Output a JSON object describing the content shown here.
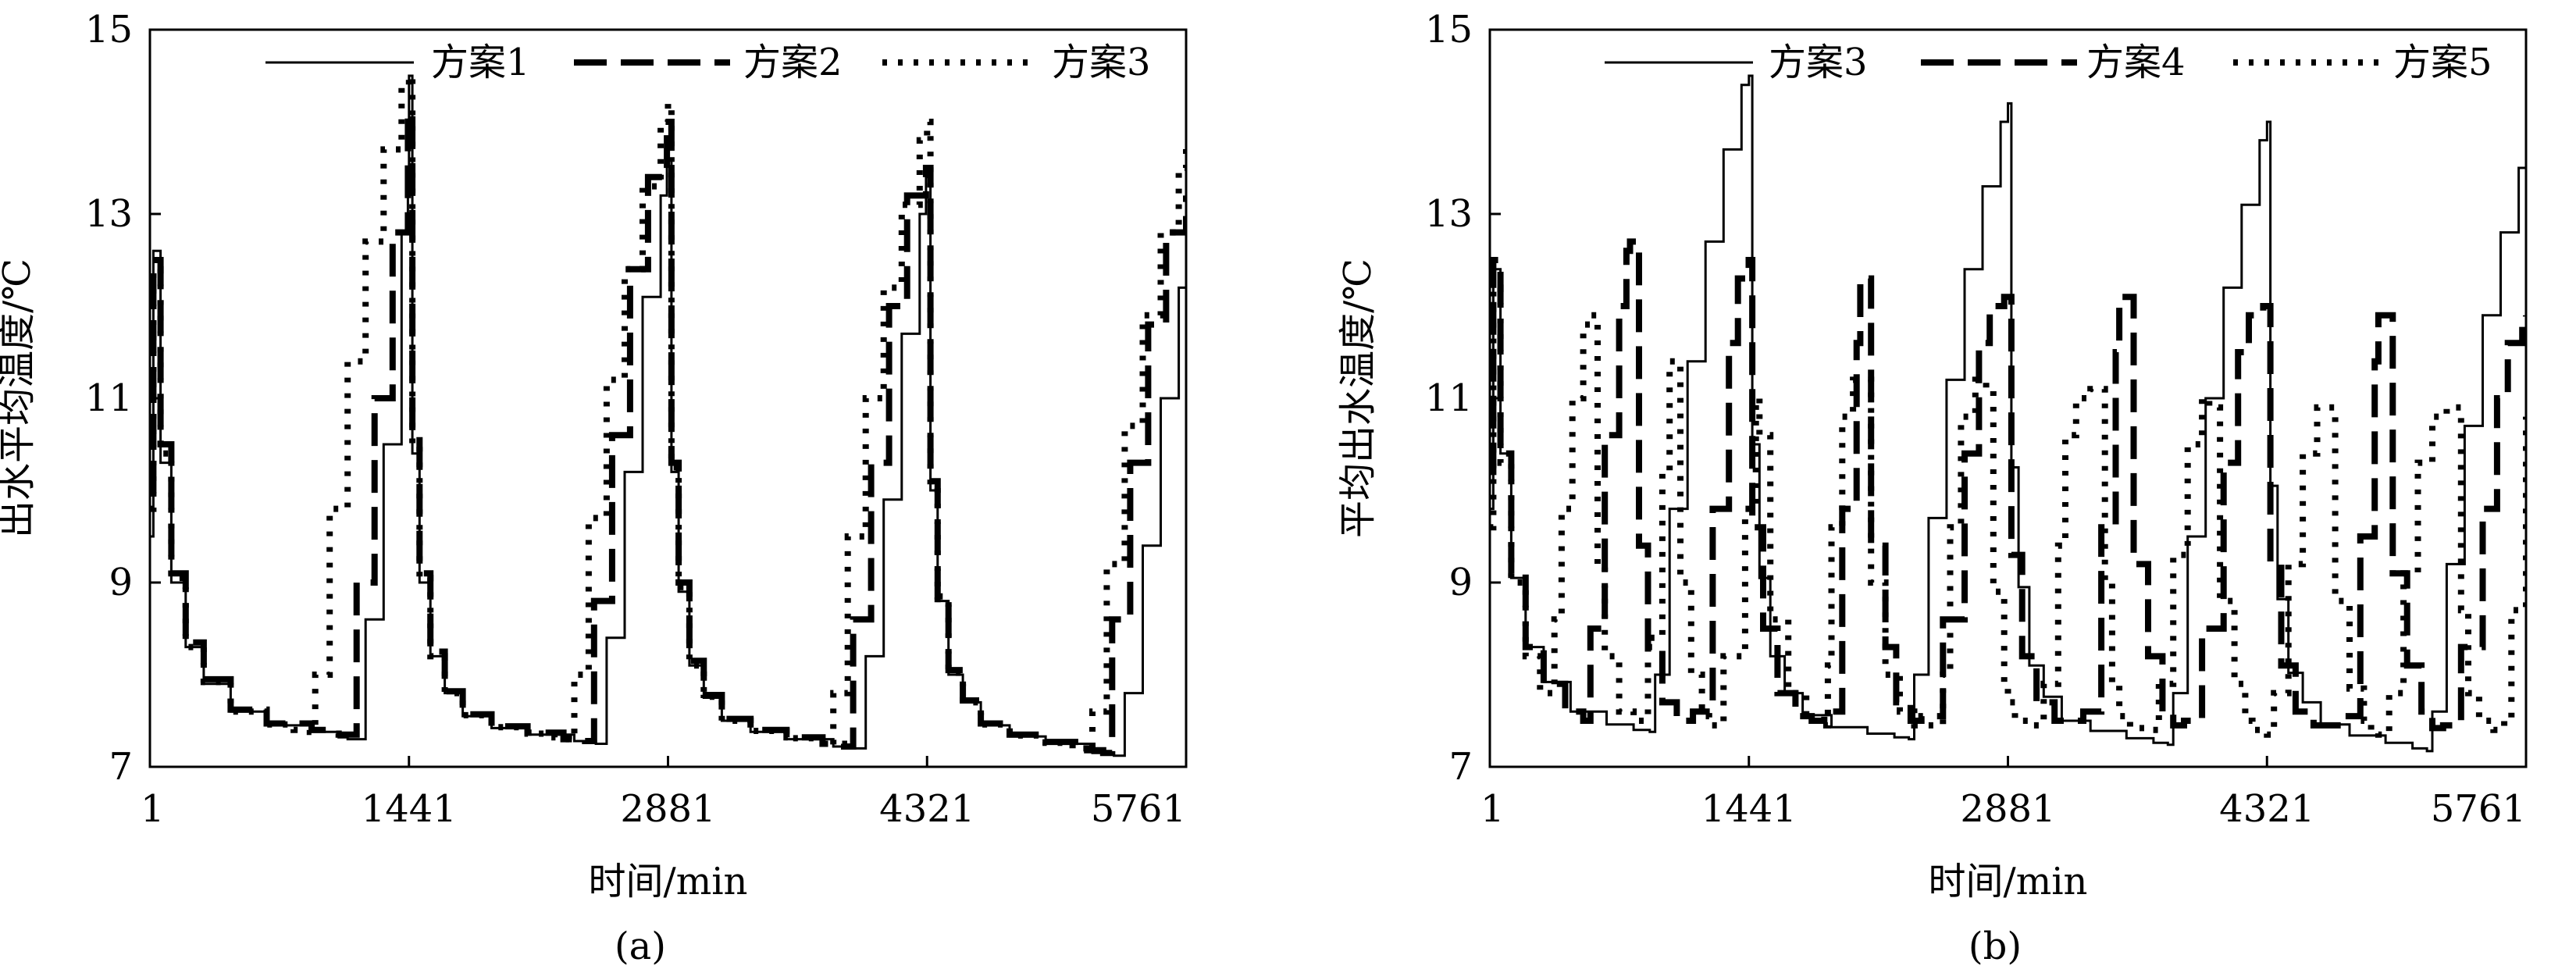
{
  "figure": {
    "panels": [
      {
        "caption": "(a)",
        "xlabel": "时间/min",
        "ylabel": "出水平均温度/℃",
        "legend_position": "top"
      },
      {
        "caption": "(b)",
        "xlabel": "时间/min",
        "ylabel": "平均出水温度/℃",
        "legend_position": "top"
      }
    ]
  },
  "chart_data": [
    {
      "type": "line",
      "title": "",
      "xlabel": "时间/min",
      "ylabel": "出水平均温度/℃",
      "xlim": [
        1,
        5761
      ],
      "ylim": [
        7,
        15
      ],
      "xticks": [
        1,
        1441,
        2881,
        4321,
        5761
      ],
      "yticks": [
        7,
        9,
        11,
        13,
        15
      ],
      "grid": false,
      "legend_position": "top",
      "series": [
        {
          "name": "方案1",
          "style": "solid",
          "x": [
            1,
            20,
            60,
            120,
            200,
            300,
            450,
            650,
            900,
            1050,
            1100,
            1200,
            1300,
            1400,
            1435,
            1441,
            1460,
            1500,
            1560,
            1640,
            1740,
            1900,
            2100,
            2360,
            2480,
            2540,
            2640,
            2740,
            2840,
            2875,
            2881,
            2900,
            2940,
            3000,
            3080,
            3180,
            3340,
            3540,
            3800,
            3920,
            3980,
            4080,
            4180,
            4280,
            4315,
            4321,
            4340,
            4380,
            4440,
            4520,
            4620,
            4780,
            4980,
            5240,
            5360,
            5420,
            5520,
            5620,
            5720,
            5761
          ],
          "values": [
            9.5,
            12.6,
            10.3,
            9.0,
            8.3,
            7.9,
            7.6,
            7.45,
            7.38,
            7.32,
            7.3,
            8.6,
            10.5,
            12.8,
            13.5,
            14.5,
            10.4,
            9.0,
            8.2,
            7.8,
            7.55,
            7.42,
            7.35,
            7.28,
            7.25,
            8.4,
            10.2,
            12.1,
            13.2,
            13.6,
            13.6,
            10.2,
            8.9,
            8.1,
            7.75,
            7.5,
            7.38,
            7.3,
            7.22,
            7.2,
            8.2,
            9.9,
            11.7,
            13.0,
            13.4,
            13.4,
            10.0,
            8.8,
            8.0,
            7.7,
            7.45,
            7.33,
            7.25,
            7.15,
            7.12,
            7.8,
            9.4,
            11.0,
            12.2,
            12.4
          ]
        },
        {
          "name": "方案2",
          "style": "dash",
          "x": [
            1,
            20,
            60,
            120,
            200,
            300,
            450,
            650,
            900,
            1000,
            1050,
            1150,
            1250,
            1350,
            1435,
            1441,
            1460,
            1500,
            1560,
            1640,
            1740,
            1900,
            2100,
            2300,
            2420,
            2470,
            2570,
            2670,
            2770,
            2875,
            2881,
            2900,
            2940,
            3000,
            3080,
            3180,
            3340,
            3540,
            3740,
            3860,
            3910,
            4010,
            4110,
            4210,
            4315,
            4321,
            4340,
            4380,
            4440,
            4520,
            4620,
            4780,
            4980,
            5180,
            5300,
            5350,
            5450,
            5550,
            5650,
            5761
          ],
          "values": [
            10.0,
            12.5,
            10.5,
            9.1,
            8.35,
            7.95,
            7.62,
            7.47,
            7.4,
            7.36,
            7.35,
            9.0,
            11.0,
            12.8,
            14.1,
            14.1,
            10.6,
            9.1,
            8.25,
            7.82,
            7.57,
            7.44,
            7.37,
            7.3,
            7.28,
            8.8,
            10.6,
            12.4,
            13.4,
            14.0,
            14.0,
            10.3,
            9.0,
            8.15,
            7.78,
            7.52,
            7.4,
            7.32,
            7.25,
            7.22,
            8.6,
            10.3,
            12.0,
            13.2,
            13.5,
            13.5,
            10.1,
            8.85,
            8.05,
            7.72,
            7.47,
            7.35,
            7.27,
            7.18,
            7.15,
            8.6,
            10.3,
            11.8,
            12.8,
            13.2
          ]
        },
        {
          "name": "方案3",
          "style": "dot",
          "x": [
            1,
            20,
            60,
            120,
            200,
            300,
            450,
            650,
            800,
            890,
            920,
            1000,
            1100,
            1200,
            1300,
            1400,
            1441,
            1460,
            1500,
            1560,
            1640,
            1740,
            1900,
            2100,
            2250,
            2330,
            2360,
            2440,
            2540,
            2640,
            2740,
            2840,
            2881,
            2900,
            2940,
            3000,
            3080,
            3180,
            3340,
            3540,
            3690,
            3770,
            3800,
            3880,
            3980,
            4080,
            4180,
            4280,
            4321,
            4340,
            4380,
            4440,
            4520,
            4620,
            4780,
            4980,
            5130,
            5210,
            5240,
            5320,
            5420,
            5520,
            5620,
            5720,
            5761
          ],
          "values": [
            9.8,
            12.4,
            10.4,
            9.05,
            8.3,
            7.92,
            7.6,
            7.46,
            7.4,
            7.38,
            8.0,
            9.8,
            11.4,
            12.7,
            13.7,
            14.4,
            14.5,
            10.5,
            9.05,
            8.2,
            7.8,
            7.56,
            7.43,
            7.36,
            7.32,
            7.3,
            8.0,
            9.7,
            11.2,
            12.4,
            13.3,
            14.0,
            14.2,
            10.25,
            8.95,
            8.1,
            7.76,
            7.5,
            7.39,
            7.31,
            7.26,
            7.24,
            7.8,
            9.5,
            11.0,
            12.2,
            13.1,
            13.8,
            14.0,
            10.05,
            8.82,
            8.02,
            7.7,
            7.46,
            7.34,
            7.26,
            7.2,
            7.17,
            7.6,
            9.2,
            10.7,
            11.9,
            12.8,
            13.5,
            13.8
          ]
        }
      ]
    },
    {
      "type": "line",
      "title": "",
      "xlabel": "时间/min",
      "ylabel": "平均出水温度/℃",
      "xlim": [
        1,
        5761
      ],
      "ylim": [
        7,
        15
      ],
      "xticks": [
        1,
        1441,
        2881,
        4321,
        5761
      ],
      "yticks": [
        7,
        9,
        11,
        13,
        15
      ],
      "grid": false,
      "legend_position": "top",
      "series": [
        {
          "name": "方案3",
          "style": "solid",
          "x": [
            1,
            20,
            60,
            120,
            200,
            300,
            450,
            650,
            800,
            890,
            920,
            1000,
            1100,
            1200,
            1300,
            1400,
            1441,
            1460,
            1500,
            1560,
            1640,
            1740,
            1900,
            2100,
            2250,
            2330,
            2360,
            2440,
            2540,
            2640,
            2740,
            2840,
            2881,
            2900,
            2940,
            3000,
            3080,
            3180,
            3340,
            3540,
            3690,
            3770,
            3800,
            3880,
            3980,
            4080,
            4180,
            4280,
            4321,
            4340,
            4380,
            4440,
            4520,
            4620,
            4780,
            4980,
            5130,
            5210,
            5240,
            5320,
            5420,
            5520,
            5620,
            5720,
            5761
          ],
          "values": [
            9.8,
            12.4,
            10.4,
            9.05,
            8.3,
            7.92,
            7.6,
            7.46,
            7.4,
            7.38,
            8.0,
            9.8,
            11.4,
            12.7,
            13.7,
            14.4,
            14.5,
            10.5,
            9.05,
            8.2,
            7.8,
            7.56,
            7.43,
            7.36,
            7.32,
            7.3,
            8.0,
            9.7,
            11.2,
            12.4,
            13.3,
            14.0,
            14.2,
            10.25,
            8.95,
            8.1,
            7.76,
            7.5,
            7.39,
            7.31,
            7.26,
            7.24,
            7.8,
            9.5,
            11.0,
            12.2,
            13.1,
            13.8,
            14.0,
            10.05,
            8.82,
            8.02,
            7.7,
            7.46,
            7.34,
            7.26,
            7.2,
            7.17,
            7.6,
            9.2,
            10.7,
            11.9,
            12.8,
            13.5,
            13.8
          ]
        },
        {
          "name": "方案4",
          "style": "dash",
          "x": [
            1,
            20,
            60,
            120,
            200,
            300,
            420,
            520,
            560,
            640,
            720,
            760,
            780,
            830,
            880,
            960,
            1040,
            1130,
            1240,
            1330,
            1380,
            1440,
            1460,
            1520,
            1600,
            1700,
            1790,
            1860,
            1960,
            2040,
            2060,
            2120,
            2200,
            2260,
            2340,
            2400,
            2520,
            2640,
            2720,
            2780,
            2860,
            2881,
            2900,
            2960,
            3040,
            3140,
            3230,
            3300,
            3400,
            3480,
            3500,
            3580,
            3660,
            3740,
            3800,
            3860,
            3960,
            4080,
            4160,
            4220,
            4300,
            4321,
            4340,
            4400,
            4480,
            4580,
            4670,
            4740,
            4840,
            4920,
            4940,
            5020,
            5100,
            5180,
            5240,
            5300,
            5400,
            5520,
            5600,
            5660,
            5740,
            5761
          ],
          "values": [
            10.2,
            12.5,
            10.4,
            9.1,
            8.3,
            7.9,
            7.6,
            7.5,
            8.5,
            10.6,
            12.0,
            12.6,
            12.7,
            9.4,
            8.3,
            7.7,
            7.5,
            7.6,
            9.8,
            11.6,
            12.3,
            12.5,
            9.6,
            8.5,
            7.8,
            7.55,
            7.5,
            7.6,
            9.8,
            11.6,
            12.3,
            9.4,
            8.3,
            7.7,
            7.5,
            7.55,
            8.6,
            10.4,
            11.6,
            12.0,
            12.1,
            12.1,
            9.3,
            8.2,
            7.7,
            7.5,
            7.5,
            7.6,
            9.6,
            11.5,
            12.1,
            9.2,
            8.2,
            7.6,
            7.45,
            7.5,
            8.5,
            10.3,
            11.5,
            11.9,
            12.0,
            12.0,
            9.2,
            8.1,
            7.6,
            7.45,
            7.45,
            7.55,
            9.5,
            11.4,
            11.9,
            9.1,
            8.1,
            7.6,
            7.42,
            7.45,
            8.3,
            9.8,
            11.0,
            11.6,
            11.85,
            11.9
          ]
        },
        {
          "name": "方案5",
          "style": "dot",
          "x": [
            1,
            20,
            60,
            120,
            200,
            280,
            360,
            400,
            460,
            520,
            560,
            600,
            640,
            720,
            800,
            880,
            960,
            1000,
            1060,
            1120,
            1180,
            1220,
            1300,
            1420,
            1480,
            1500,
            1560,
            1660,
            1760,
            1840,
            1880,
            1900,
            1960,
            2020,
            2080,
            2120,
            2200,
            2280,
            2360,
            2440,
            2520,
            2560,
            2620,
            2700,
            2760,
            2800,
            2860,
            2881,
            2920,
            3000,
            3080,
            3160,
            3200,
            3260,
            3340,
            3420,
            3460,
            3500,
            3560,
            3640,
            3720,
            3800,
            3880,
            3960,
            4000,
            4060,
            4140,
            4200,
            4240,
            4321,
            4360,
            4440,
            4520,
            4600,
            4640,
            4700,
            4780,
            4860,
            4900,
            4940,
            5000,
            5080,
            5160,
            5240,
            5320,
            5400,
            5440,
            5500,
            5580,
            5640,
            5680,
            5761
          ],
          "values": [
            9.6,
            12.2,
            10.3,
            9.0,
            8.2,
            7.8,
            8.6,
            9.8,
            11.0,
            11.8,
            11.9,
            9.2,
            8.2,
            7.6,
            7.5,
            8.4,
            10.2,
            11.4,
            9.0,
            8.0,
            7.55,
            7.45,
            8.2,
            9.8,
            11.0,
            10.6,
            8.6,
            7.8,
            7.5,
            7.45,
            8.1,
            9.6,
            10.8,
            11.2,
            11.2,
            9.0,
            8.0,
            7.6,
            7.45,
            7.45,
            8.0,
            9.6,
            10.8,
            11.2,
            11.1,
            8.9,
            7.9,
            7.7,
            7.5,
            7.45,
            7.9,
            9.4,
            10.6,
            11.0,
            11.1,
            9.0,
            7.9,
            7.55,
            7.42,
            7.4,
            7.9,
            9.3,
            10.5,
            11.0,
            10.9,
            8.8,
            7.9,
            7.5,
            7.4,
            7.35,
            7.8,
            9.2,
            10.4,
            10.9,
            10.9,
            8.8,
            7.85,
            7.5,
            7.4,
            7.35,
            7.8,
            9.1,
            10.3,
            10.8,
            10.9,
            8.7,
            7.8,
            7.5,
            7.4,
            7.5,
            8.7,
            10.8
          ]
        }
      ]
    }
  ]
}
